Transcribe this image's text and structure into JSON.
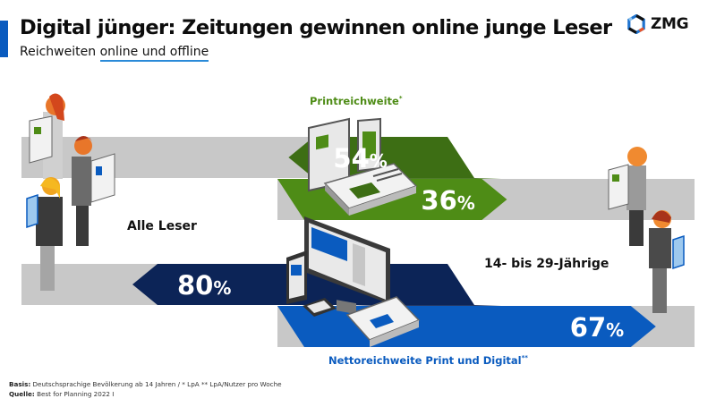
{
  "header": {
    "title": "Digital jünger: Zeitungen gewinnen online junge Leser",
    "subtitle_plain": "Reichweiten ",
    "subtitle_underlined": "online und offline",
    "logo_text": "ZMG",
    "accent_color": "#0a5bbf"
  },
  "chart_data": {
    "type": "bar",
    "title": "Digital jünger: Zeitungen gewinnen online junge Leser",
    "subtitle": "Reichweiten online und offline",
    "categories": [
      "Alle Leser",
      "14- bis 29-Jährige"
    ],
    "unit": "%",
    "ylim": [
      0,
      100
    ],
    "series": [
      {
        "name": "Printreichweite*",
        "values": [
          54,
          36
        ],
        "color_all": "#3d6e14",
        "color_young": "#4e8c16",
        "label_color": "#4e8c16"
      },
      {
        "name": "Nettoreichweite Print und Digital**",
        "values": [
          80,
          67
        ],
        "color_all": "#0c2457",
        "color_young": "#0a5bbf",
        "label_color": "#0a5bbf"
      }
    ],
    "value_labels": [
      {
        "series": 0,
        "category": 0,
        "number": "54",
        "suffix": "%"
      },
      {
        "series": 0,
        "category": 1,
        "number": "36",
        "suffix": "%"
      },
      {
        "series": 1,
        "category": 0,
        "number": "80",
        "suffix": "%"
      },
      {
        "series": 1,
        "category": 1,
        "number": "67",
        "suffix": "%"
      }
    ],
    "track_color": "#c8c8c8",
    "legend": "inline-labels"
  },
  "labels": {
    "group_all": "Alle Leser",
    "group_young": "14- bis 29-Jährige",
    "print_label": "Printreichweite",
    "print_mark": "*",
    "net_label": "Nettoreichweite Print und Digital",
    "net_mark": "**"
  },
  "footer": {
    "basis_label": "Basis:",
    "basis_text": " Deutschsprachige Bevölkerung ab 14 Jahren / * LpA ** LpA/Nutzer pro Woche",
    "source_label": "Quelle:",
    "source_text": " Best for Planning 2022 I"
  }
}
